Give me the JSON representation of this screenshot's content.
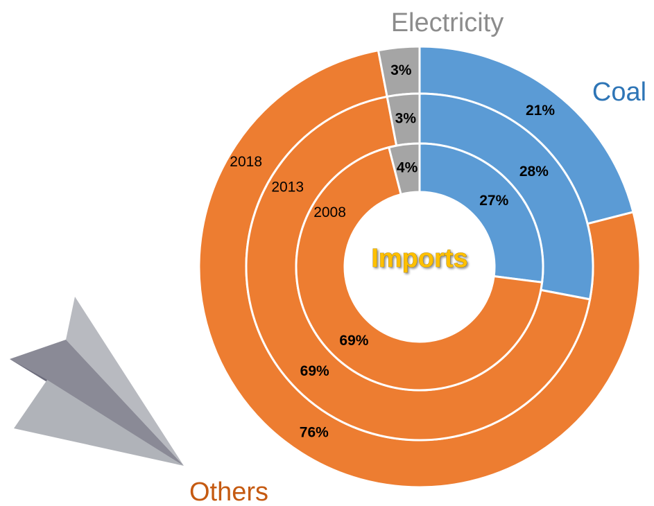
{
  "chart_data": {
    "type": "donut",
    "title": "Imports",
    "categories": [
      "Coal",
      "Others",
      "Electricity"
    ],
    "colors": [
      "#5b9bd5",
      "#ed7d31",
      "#a5a5a5"
    ],
    "label_colors": [
      "#2e75b6",
      "#c55a11",
      "#8c8c8c"
    ],
    "series": [
      {
        "name": "2018",
        "values": [
          21,
          76,
          3
        ],
        "value_labels": [
          "21%",
          "76%",
          "3%"
        ]
      },
      {
        "name": "2013",
        "values": [
          28,
          69,
          3
        ],
        "value_labels": [
          "28%",
          "69%",
          "3%"
        ]
      },
      {
        "name": "2008",
        "values": [
          27,
          69,
          4
        ],
        "value_labels": [
          "27%",
          "69%",
          "4%"
        ]
      }
    ]
  }
}
